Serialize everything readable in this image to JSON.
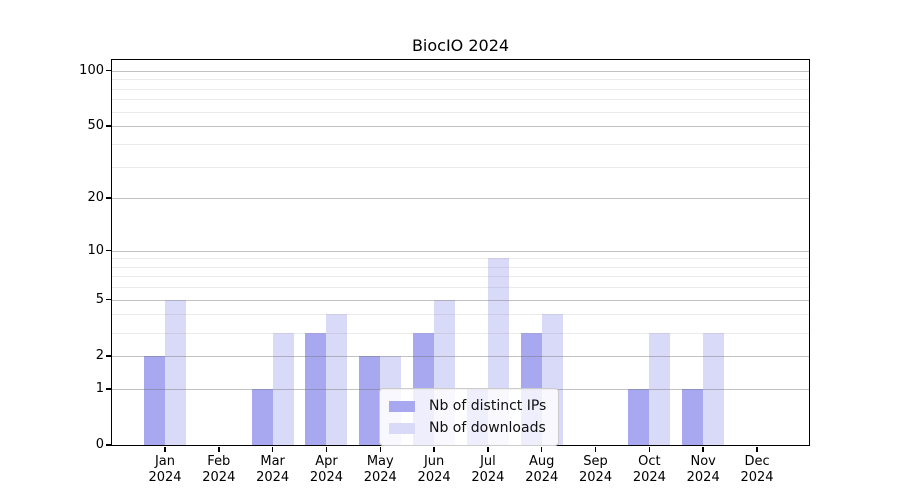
{
  "title": "BiocIO 2024",
  "chart_data": {
    "type": "bar",
    "title": "BiocIO 2024",
    "categories": [
      "Jan",
      "Feb",
      "Mar",
      "Apr",
      "May",
      "Jun",
      "Jul",
      "Aug",
      "Sep",
      "Oct",
      "Nov",
      "Dec"
    ],
    "x_year_label": "2024",
    "series": [
      {
        "name": "Nb of distinct IPs",
        "color": "#a8a8f0",
        "values": [
          2,
          0,
          1,
          3,
          2,
          3,
          1,
          3,
          0,
          1,
          1,
          0
        ]
      },
      {
        "name": "Nb of downloads",
        "color": "#d9d9f8",
        "values": [
          5,
          0,
          3,
          4,
          2,
          5,
          9,
          4,
          0,
          3,
          3,
          0
        ]
      }
    ],
    "y_scale": "log1p",
    "y_ticks_major": [
      0,
      1,
      2,
      5,
      10,
      20,
      50,
      100
    ],
    "y_gridlines_minor": [
      3,
      4,
      6,
      7,
      8,
      9,
      30,
      40,
      60,
      70,
      80,
      90
    ],
    "ylim": [
      0,
      114
    ],
    "grid": "on",
    "legend_position": "lower center"
  },
  "colors": {
    "bar_distinct_ips": "#a8a8f0",
    "bar_downloads": "#d9d9f8",
    "grid_major": "#c6c6c6",
    "grid_minor": "#e9e9e9",
    "spine": "#000000",
    "legend_border": "#cccccc"
  }
}
